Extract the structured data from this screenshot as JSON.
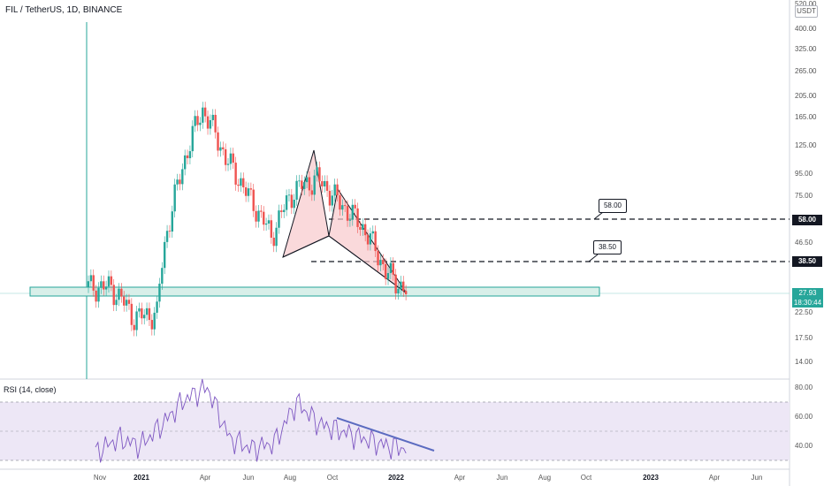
{
  "header": {
    "symbol_title": "FIL / TetherUS, 1D, BINANCE",
    "currency_label": "USDT",
    "price_clipped_top": "520.00"
  },
  "rsi_panel": {
    "title": "RSI (14, close)"
  },
  "price_axis_ticks": [
    "400.00",
    "325.00",
    "265.00",
    "205.00",
    "165.00",
    "125.00",
    "95.00",
    "75.00",
    "46.50",
    "22.50",
    "17.50",
    "14.00"
  ],
  "rsi_axis_ticks": [
    "80.00",
    "60.00",
    "40.00"
  ],
  "time_axis_ticks": [
    {
      "label": "Nov",
      "bold": false
    },
    {
      "label": "2021",
      "bold": true
    },
    {
      "label": "Apr",
      "bold": false
    },
    {
      "label": "Jun",
      "bold": false
    },
    {
      "label": "Aug",
      "bold": false
    },
    {
      "label": "Oct",
      "bold": false
    },
    {
      "label": "2022",
      "bold": true
    },
    {
      "label": "Apr",
      "bold": false
    },
    {
      "label": "Jun",
      "bold": false
    },
    {
      "label": "Aug",
      "bold": false
    },
    {
      "label": "Oct",
      "bold": false
    },
    {
      "label": "2023",
      "bold": true
    },
    {
      "label": "Apr",
      "bold": false
    },
    {
      "label": "Jun",
      "bold": false
    }
  ],
  "levels": {
    "upper": {
      "value": "58.00",
      "callout": "58.00"
    },
    "lower": {
      "value": "38.50",
      "callout": "38.50"
    }
  },
  "current_price": {
    "value": "27.93",
    "countdown": "18:30:44"
  },
  "colors": {
    "up": "#26a69a",
    "down": "#ef5350",
    "rsi_line": "#7e57c2",
    "rsi_band": "#ede7f6",
    "harmonic_fill": "#f8c9cc",
    "support_fill": "#d8efe9",
    "trendline": "#5b6bc0"
  },
  "chart_data": {
    "type": "candlestick",
    "x": [
      "2020-11",
      "2020-12",
      "2021-01",
      "2021-02",
      "2021-03",
      "2021-04",
      "2021-05",
      "2021-06",
      "2021-07",
      "2021-08",
      "2021-09",
      "2021-10",
      "2021-11",
      "2021-12",
      "2022-01"
    ],
    "close": [
      30,
      30,
      22,
      23,
      90,
      180,
      110,
      75,
      50,
      80,
      90,
      70,
      55,
      35,
      28
    ],
    "ylabel": "",
    "scale": "log",
    "harmonic_pattern_points": [
      {
        "x": "2021-07-20",
        "y": 40
      },
      {
        "x": "2021-09-07",
        "y": 120
      },
      {
        "x": "2021-09-21",
        "y": 49
      },
      {
        "x": "2021-10-07",
        "y": 80
      },
      {
        "x": "2022-01-08",
        "y": 27
      }
    ],
    "horizontal_levels": [
      58.0,
      38.5
    ],
    "support_zone": [
      26.5,
      29.0
    ],
    "rsi": {
      "length": 14,
      "source": "close",
      "values": [
        35,
        45,
        40,
        55,
        72,
        80,
        45,
        38,
        42,
        70,
        55,
        50,
        45,
        40,
        38
      ],
      "bands": [
        30,
        70
      ]
    }
  }
}
